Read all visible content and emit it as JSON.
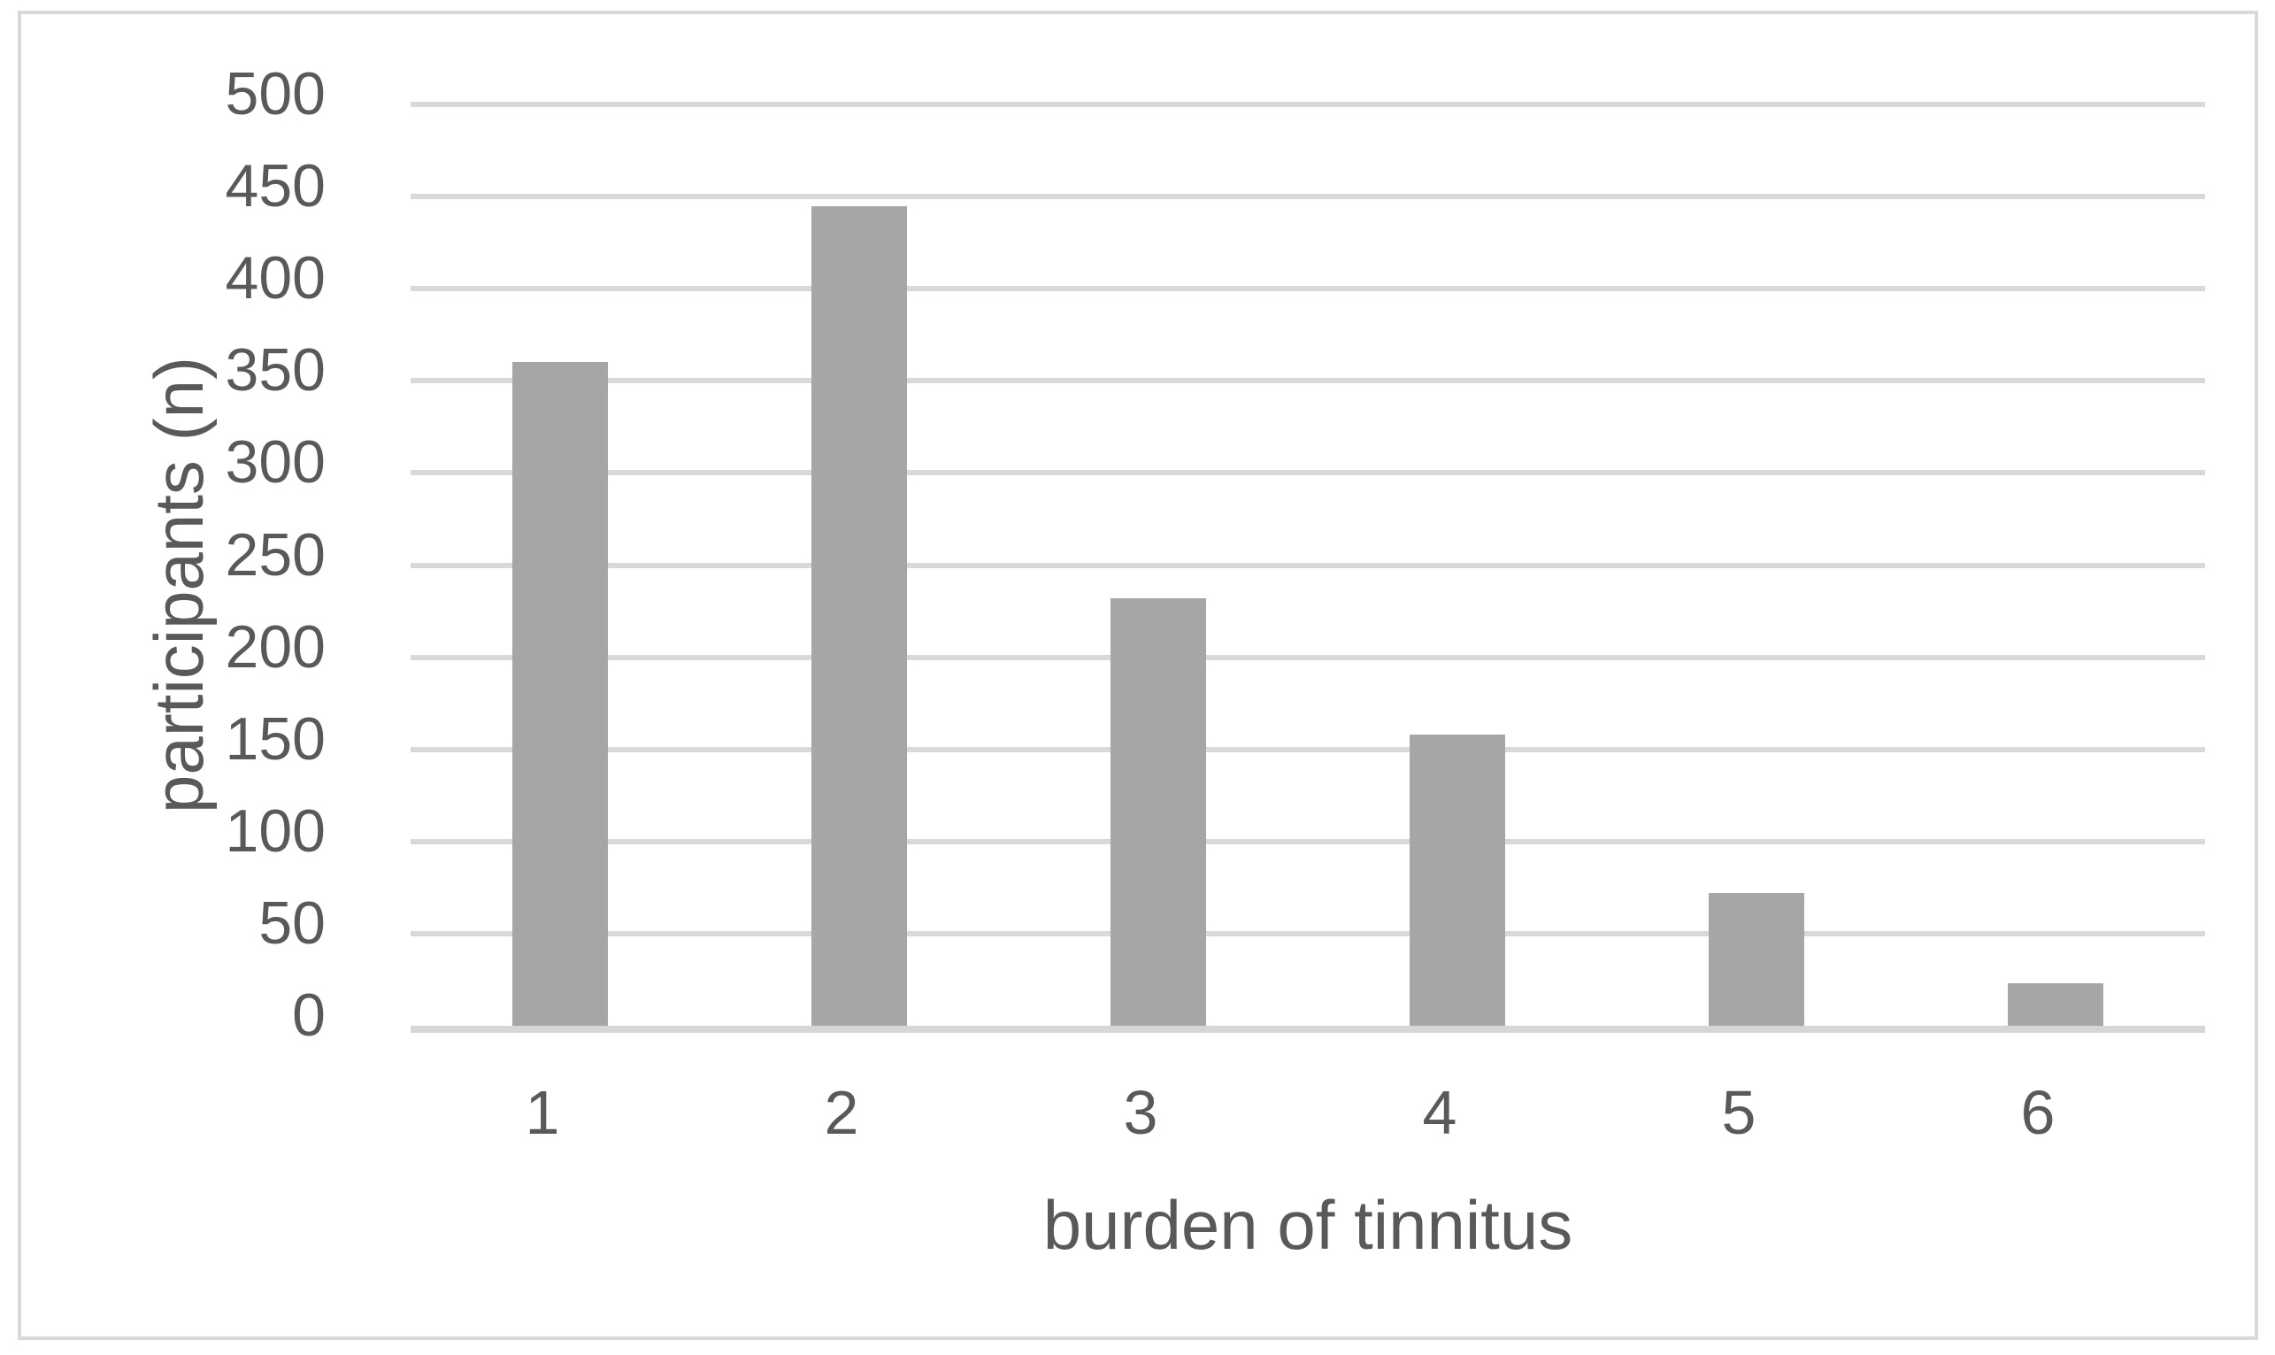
{
  "chart_data": {
    "type": "bar",
    "title": "",
    "categories": [
      "1",
      "2",
      "3",
      "4",
      "5",
      "6"
    ],
    "values": [
      360,
      445,
      232,
      158,
      72,
      23
    ],
    "xlabel": "burden of tinnitus",
    "ylabel": "participants (n)",
    "ylim": [
      0,
      500
    ],
    "ytick_step": 50,
    "ytick_labels": [
      "0",
      "50",
      "100",
      "150",
      "200",
      "250",
      "300",
      "350",
      "400",
      "450",
      "500"
    ],
    "grid": "horizontal",
    "legend": "none",
    "colors": {
      "bar": "#a6a6a6",
      "gridline": "#d9d9d9",
      "axis_line": "#d6d6d6",
      "text": "#595959",
      "frame_border": "#d9d9d9",
      "background": "#ffffff"
    }
  }
}
